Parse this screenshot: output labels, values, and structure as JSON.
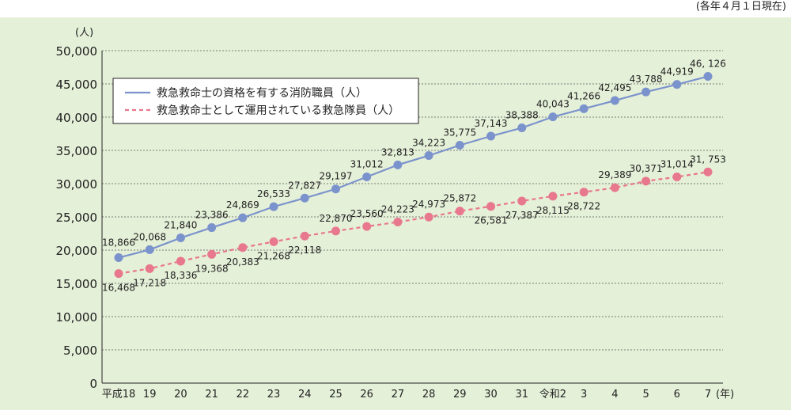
{
  "note": "(各年４月１日現在)",
  "chart_data": {
    "type": "line",
    "ylabel": "(人)",
    "xlabel": "(年)",
    "ylim": [
      0,
      50000
    ],
    "yticks": [
      0,
      5000,
      10000,
      15000,
      20000,
      25000,
      30000,
      35000,
      40000,
      45000,
      50000
    ],
    "ytick_labels": [
      "0",
      "5,000",
      "10,000",
      "15,000",
      "20,000",
      "25,000",
      "30,000",
      "35,000",
      "40,000",
      "45,000",
      "50,000"
    ],
    "categories": [
      "平成18",
      "19",
      "20",
      "21",
      "22",
      "23",
      "24",
      "25",
      "26",
      "27",
      "28",
      "29",
      "30",
      "31",
      "令和2",
      "3",
      "4",
      "5",
      "6",
      "7"
    ],
    "grid": true,
    "legend_position": "top-left",
    "series": [
      {
        "name": "救急救命士の資格を有する消防職員（人）",
        "color": "#7b93cc",
        "style": "solid",
        "values": [
          18866,
          20068,
          21840,
          23386,
          24869,
          26533,
          27827,
          29197,
          31012,
          32813,
          34223,
          35775,
          37143,
          38388,
          40043,
          41266,
          42495,
          43788,
          44919,
          46126
        ],
        "labels": [
          "18,866",
          "20,068",
          "21,840",
          "23,386",
          "24,869",
          "26,533",
          "27,827",
          "29,197",
          "31,012",
          "32,813",
          "34,223",
          "35,775",
          "37,143",
          "38,388",
          "40,043",
          "41,266",
          "42,495",
          "43,788",
          "44,919",
          "46, 126"
        ]
      },
      {
        "name": "救急救命士として運用されている救急隊員（人）",
        "color": "#e8788d",
        "style": "dashed",
        "values": [
          16468,
          17218,
          18336,
          19368,
          20383,
          21268,
          22118,
          22870,
          23560,
          24223,
          24973,
          25872,
          26581,
          27387,
          28115,
          28722,
          29389,
          30371,
          31014,
          31753
        ],
        "labels": [
          "16,468",
          "17,218",
          "18,336",
          "19,368",
          "20,383",
          "21,268",
          "22,118",
          "22,870",
          "23,560",
          "24,223",
          "24,973",
          "25,872",
          "26,581",
          "27,387",
          "28,115",
          "28,722",
          "29,389",
          "30,371",
          "31,014",
          "31, 753"
        ]
      }
    ]
  }
}
